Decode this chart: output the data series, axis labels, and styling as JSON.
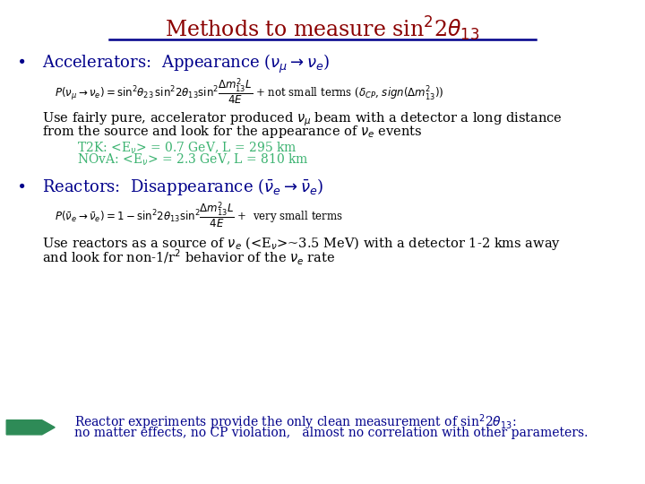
{
  "background_color": "#ffffff",
  "title": "Methods to measure sin$^2$2$\\theta_{13}$",
  "title_color": "#8B0000",
  "title_fontsize": 17,
  "underline_color": "#00008B",
  "bullet_color": "#00008B",
  "bullet1_head": "Accelerators:  Appearance ($\\nu_{\\mu}$$\\rightarrow$$\\nu_{e}$)",
  "formula1_color": "#000000",
  "formula1_fontsize": 8.5,
  "bullet1_text1": "Use fairly pure, accelerator produced $\\nu_{\\mu}$ beam with a detector a long distance",
  "bullet1_text2": "from the source and look for the appearance of $\\nu_{e}$ events",
  "body_fontsize": 10.5,
  "exp1_color": "#3CB371",
  "exp1_line1": "T2K: <E$_{\\nu}$> = 0.7 GeV, L = 295 km",
  "exp1_line2": "NOvA: <E$_{\\nu}$> = 2.3 GeV, L = 810 km",
  "exp_fontsize": 10,
  "bullet2_head": "Reactors:  Disappearance ($\\bar{\\nu}_{e}$$\\rightarrow$$\\bar{\\nu}_{e}$)",
  "formula2_color": "#000000",
  "formula2_fontsize": 8.5,
  "bullet2_text1": "Use reactors as a source of $\\nu_{e}$ (<E$_{\\nu}$>~3.5 MeV) with a detector 1-2 kms away",
  "bullet2_text2": "and look for non-1/r$^2$ behavior of the $\\nu_{e}$ rate",
  "arrow_color": "#2E8B57",
  "conclusion_color": "#00008B",
  "conclusion_line1": "Reactor experiments provide the only clean measurement of sin$^2$2$\\theta_{13}$:",
  "conclusion_line2": "no matter effects, no CP violation,   almost no correlation with other parameters.",
  "conclusion_fontsize": 10
}
